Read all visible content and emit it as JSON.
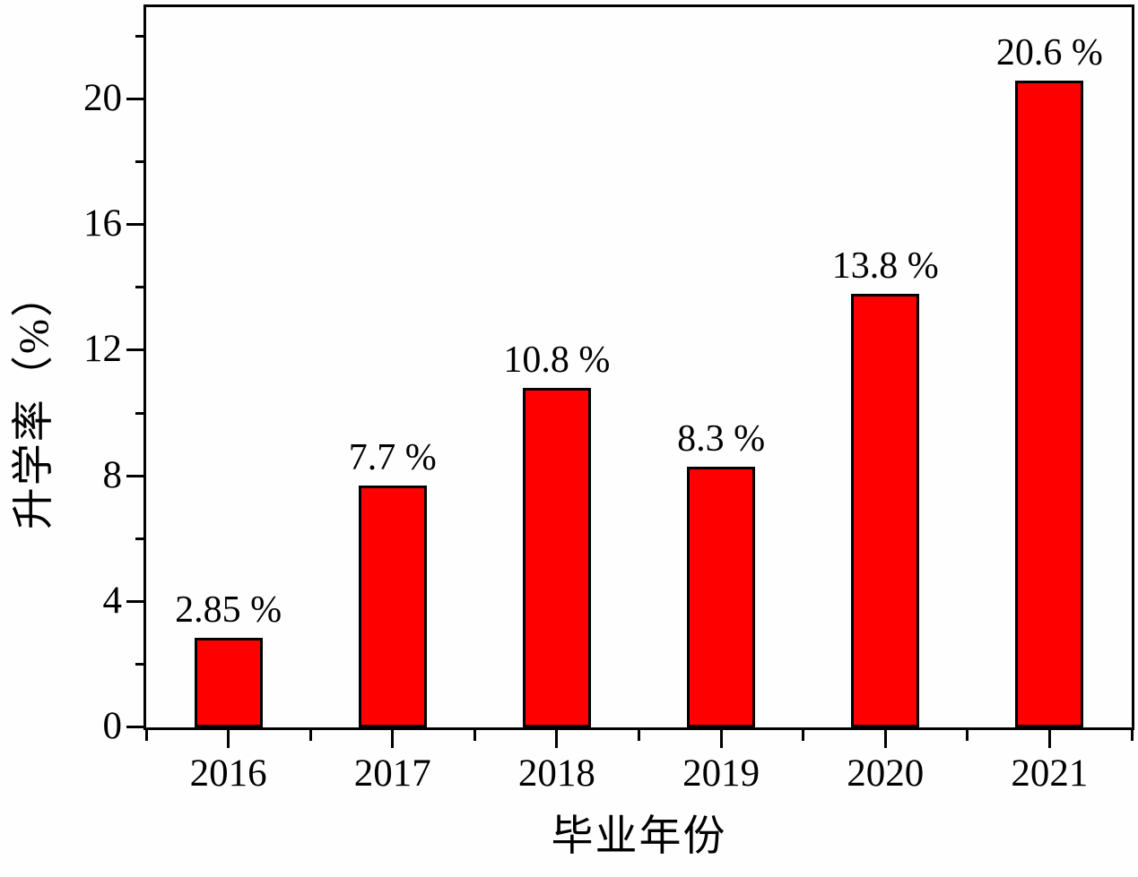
{
  "figure": {
    "background": "#FEFEFE",
    "frame_color": "#000000"
  },
  "chart_data": {
    "type": "bar",
    "categories": [
      "2016",
      "2017",
      "2018",
      "2019",
      "2020",
      "2021"
    ],
    "values": [
      2.85,
      7.7,
      10.8,
      8.3,
      13.8,
      20.6
    ],
    "bar_labels": [
      "2.85 %",
      "7.7 %",
      "10.8 %",
      "8.3 %",
      "13.8 %",
      "20.6 %"
    ],
    "title": "",
    "xlabel": "毕业年份",
    "ylabel": "升学率（%）",
    "ylim": [
      0,
      23
    ],
    "ytick_major": [
      0,
      4,
      8,
      12,
      16,
      20
    ],
    "ytick_minor": [
      2,
      6,
      10,
      14,
      18,
      22
    ],
    "grid": false,
    "legend_position": "none",
    "bar_color": "#FF0000",
    "bar_border_color": "#000000",
    "axis_color": "#000000",
    "text_color": "#000000"
  }
}
